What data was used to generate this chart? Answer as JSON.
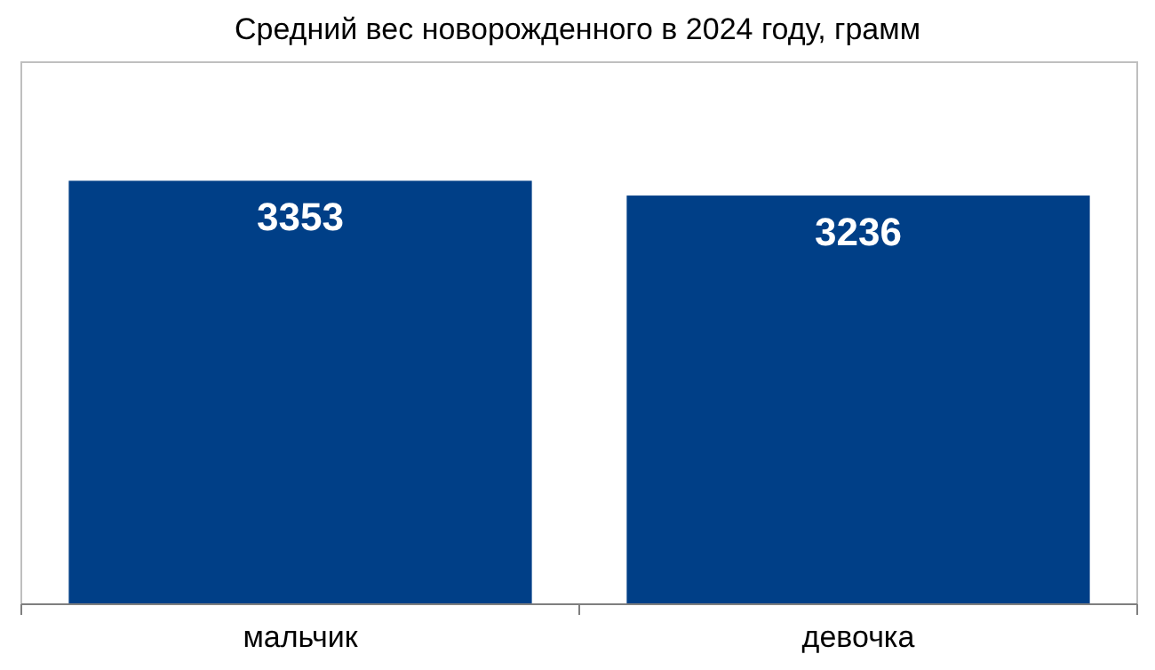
{
  "chart_data": {
    "type": "bar",
    "title": "Средний вес новорожденного в 2024 году, грамм",
    "categories": [
      "мальчик",
      "девочка"
    ],
    "values": [
      3353,
      3236
    ],
    "color": "#003f87",
    "data_labels": true
  }
}
